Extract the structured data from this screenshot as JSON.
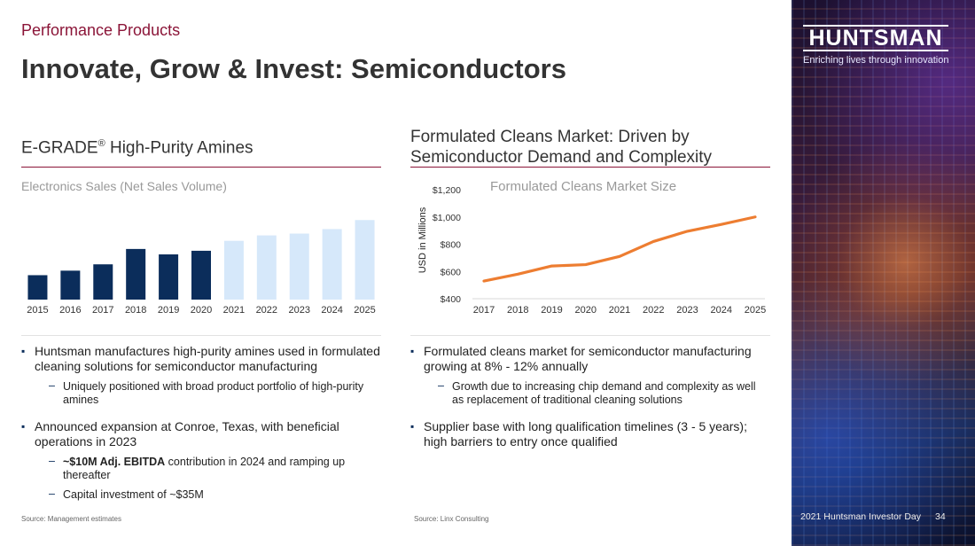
{
  "header": {
    "section_label": "Performance Products",
    "title": "Innovate, Grow & Invest: Semiconductors"
  },
  "left_panel": {
    "title_main": "E-GRADE",
    "title_sup": "®",
    "title_rest": " High-Purity Amines",
    "chart_subtitle": "Electronics Sales (Net Sales Volume)",
    "bullets": [
      {
        "text": "Huntsman manufactures high-purity amines used in formulated cleaning solutions for semiconductor manufacturing",
        "sub": [
          "Uniquely positioned with broad product portfolio of high-purity amines"
        ]
      },
      {
        "text": "Announced expansion at Conroe, Texas, with beneficial operations in 2023",
        "sub_rich": {
          "bold": "~$10M Adj. EBITDA",
          "rest": " contribution in 2024 and ramping up thereafter"
        },
        "sub": [
          "Capital investment of ~$35M"
        ]
      }
    ],
    "source": "Source: Management estimates"
  },
  "right_panel": {
    "title": "Formulated Cleans Market: Driven by Semiconductor Demand and Complexity",
    "bullets": [
      {
        "text": "Formulated cleans market for semiconductor manufacturing growing at 8% - 12% annually",
        "sub": [
          "Growth due to increasing chip demand and complexity as well as replacement of traditional cleaning solutions"
        ]
      },
      {
        "text": "Supplier base with long qualification timelines (3 - 5 years); high barriers to entry once qualified"
      }
    ],
    "source": "Source: Linx Consulting"
  },
  "brand": {
    "logo_text": "HUNTSMAN",
    "tagline": "Enriching lives through innovation"
  },
  "footer": {
    "event": "2021 Huntsman Investor Day",
    "page_number": "34"
  },
  "chart_data": [
    {
      "type": "bar",
      "title": "Electronics Sales (Net Sales Volume)",
      "categories": [
        "2015",
        "2016",
        "2017",
        "2018",
        "2019",
        "2020",
        "2021",
        "2022",
        "2023",
        "2024",
        "2025"
      ],
      "series": [
        {
          "values": [
            27,
            32,
            39,
            56,
            50,
            54,
            null,
            null,
            null,
            null,
            null
          ],
          "color": "#0b2d5b"
        },
        {
          "values": [
            null,
            null,
            null,
            null,
            null,
            null,
            65,
            71,
            73,
            78,
            88
          ],
          "color": "#d6e8fa"
        }
      ],
      "ylim": [
        0,
        100
      ],
      "y_axis_labels": false,
      "grid": false
    },
    {
      "type": "line",
      "title": "Formulated Cleans Market Size",
      "ylabel": "USD in Millions",
      "x": [
        "2017",
        "2018",
        "2019",
        "2020",
        "2021",
        "2022",
        "2023",
        "2024",
        "2025"
      ],
      "series": [
        {
          "values": [
            530,
            580,
            640,
            650,
            710,
            820,
            895,
            945,
            1000
          ],
          "color": "#ed7d31"
        }
      ],
      "ylim": [
        400,
        1200
      ],
      "yticks": [
        400,
        600,
        800,
        1000,
        1200
      ],
      "ytick_labels": [
        "$400",
        "$600",
        "$800",
        "$1,000",
        "$1,200"
      ],
      "grid": false
    }
  ]
}
